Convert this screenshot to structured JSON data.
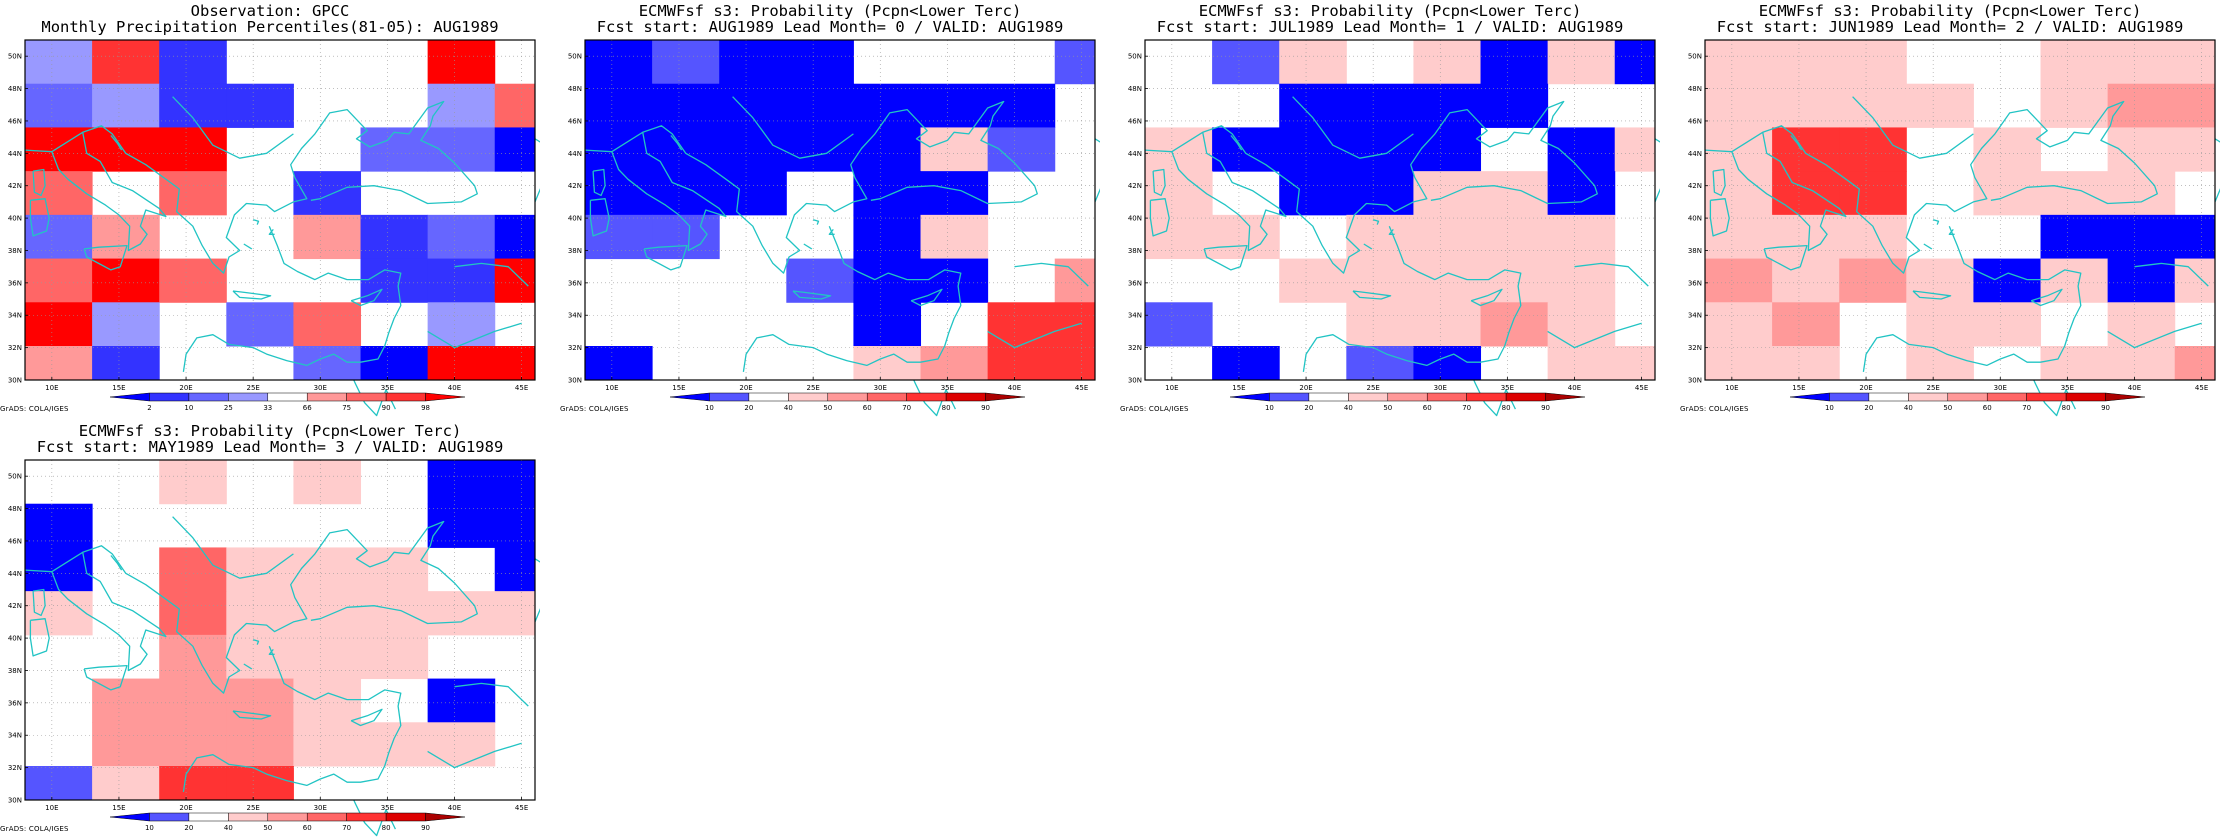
{
  "panels": [
    {
      "title": "Observation: GPCC",
      "subtitle": "Monthly Precipitation Percentiles(81-05): AUG1989",
      "credit": "GrADS: COLA/IGES",
      "colorbar": {
        "labels": [
          "2",
          "10",
          "25",
          "33",
          "66",
          "75",
          "90",
          "98"
        ],
        "colors": [
          "#0000ff",
          "#3333ff",
          "#6666ff",
          "#9999ff",
          "#ffffff",
          "#ff9999",
          "#ff6666",
          "#ff3333",
          "#ff0000"
        ]
      },
      "grid_level_colors": [
        "#ffffff",
        "#0000ff",
        "#3333ff",
        "#6666ff",
        "#9999ff",
        "#ff9999",
        "#ff6666",
        "#ff3333",
        "#ff0000"
      ],
      "grid": [
        "47200080",
        "34220046",
        "88800331",
        "60602000",
        "35005231",
        "68600228",
        "84036040",
        "52003188"
      ]
    },
    {
      "title": "ECMWFsf s3: Probability (Pcpn<Lower Terc)",
      "subtitle": "Fcst start: AUG1989   Lead Month= 0 / VALID: AUG1989",
      "credit": "GrADS: COLA/IGES",
      "colorbar": {
        "labels": [
          "10",
          "20",
          "40",
          "50",
          "60",
          "70",
          "80",
          "90"
        ],
        "colors": [
          "#0000ff",
          "#5555ff",
          "#ffffff",
          "#ffcccc",
          "#ff9999",
          "#ff6666",
          "#ff3333",
          "#dd0000",
          "#aa0000"
        ]
      },
      "grid_level_colors": [
        "#ffffff",
        "#0000ff",
        "#5555ff",
        "#ffcccc",
        "#ff9999",
        "#ff6666",
        "#ff3333",
        "#dd0000",
        "#aa0000"
      ],
      "grid": [
        "12110002",
        "11111110",
        "11111320",
        "11101100",
        "22001300",
        "00021104",
        "00001066",
        "10003466"
      ]
    },
    {
      "title": "ECMWFsf s3: Probability (Pcpn<Lower Terc)",
      "subtitle": "Fcst start: JUL1989   Lead Month= 1 / VALID: AUG1989",
      "credit": "GrADS: COLA/IGES",
      "colorbar": {
        "labels": [
          "10",
          "20",
          "40",
          "50",
          "60",
          "70",
          "80",
          "90"
        ],
        "colors": [
          "#0000ff",
          "#5555ff",
          "#ffffff",
          "#ffcccc",
          "#ff9999",
          "#ff6666",
          "#ff3333",
          "#dd0000",
          "#aa0000"
        ]
      },
      "grid_level_colors": [
        "#ffffff",
        "#0000ff",
        "#5555ff",
        "#ffcccc",
        "#ff9999",
        "#ff6666",
        "#ff3333",
        "#dd0000",
        "#aa0000"
      ],
      "grid": [
        "02303131",
        "00111100",
        "31111013",
        "30113310",
        "33033330",
        "00333330",
        "20033430",
        "01021033"
      ]
    },
    {
      "title": "ECMWFsf s3: Probability (Pcpn<Lower Terc)",
      "subtitle": "Fcst start: JUN1989   Lead Month= 2 / VALID: AUG1989",
      "credit": "GrADS: COLA/IGES",
      "colorbar": {
        "labels": [
          "10",
          "20",
          "40",
          "50",
          "60",
          "70",
          "80",
          "90"
        ],
        "colors": [
          "#0000ff",
          "#5555ff",
          "#ffffff",
          "#ffcccc",
          "#ff9999",
          "#ff6666",
          "#ff3333",
          "#dd0000",
          "#aa0000"
        ]
      },
      "grid_level_colors": [
        "#ffffff",
        "#0000ff",
        "#5555ff",
        "#ffcccc",
        "#ff9999",
        "#ff6666",
        "#ff3333",
        "#dd0000",
        "#aa0000"
      ],
      "grid": [
        "33300333",
        "33330344",
        "36603033",
        "36603330",
        "33300111",
        "43431313",
        "34033030",
        "33030334"
      ]
    },
    {
      "title": "ECMWFsf s3: Probability (Pcpn<Lower Terc)",
      "subtitle": "Fcst start: MAY1989   Lead Month= 3 / VALID: AUG1989",
      "credit": "GrADS: COLA/IGES",
      "colorbar": {
        "labels": [
          "10",
          "20",
          "40",
          "50",
          "60",
          "70",
          "80",
          "90"
        ],
        "colors": [
          "#0000ff",
          "#5555ff",
          "#ffffff",
          "#ffcccc",
          "#ff9999",
          "#ff6666",
          "#ff3333",
          "#dd0000",
          "#aa0000"
        ]
      },
      "grid_level_colors": [
        "#ffffff",
        "#0000ff",
        "#5555ff",
        "#ffcccc",
        "#ff9999",
        "#ff6666",
        "#ff3333",
        "#dd0000",
        "#aa0000"
      ],
      "grid": [
        "00303011",
        "10000011",
        "10533301",
        "30533333",
        "00433300",
        "04443010",
        "04443330",
        "23660000"
      ]
    }
  ],
  "map": {
    "x_tick_labels": [
      "10E",
      "15E",
      "20E",
      "25E",
      "30E",
      "35E",
      "40E",
      "45E"
    ],
    "y_tick_labels": [
      "50N",
      "48N",
      "46N",
      "44N",
      "42N",
      "40N",
      "38N",
      "36N",
      "34N",
      "32N",
      "30N"
    ],
    "coastline_color": "#22c4c4",
    "grid_line_color": "#999999"
  }
}
